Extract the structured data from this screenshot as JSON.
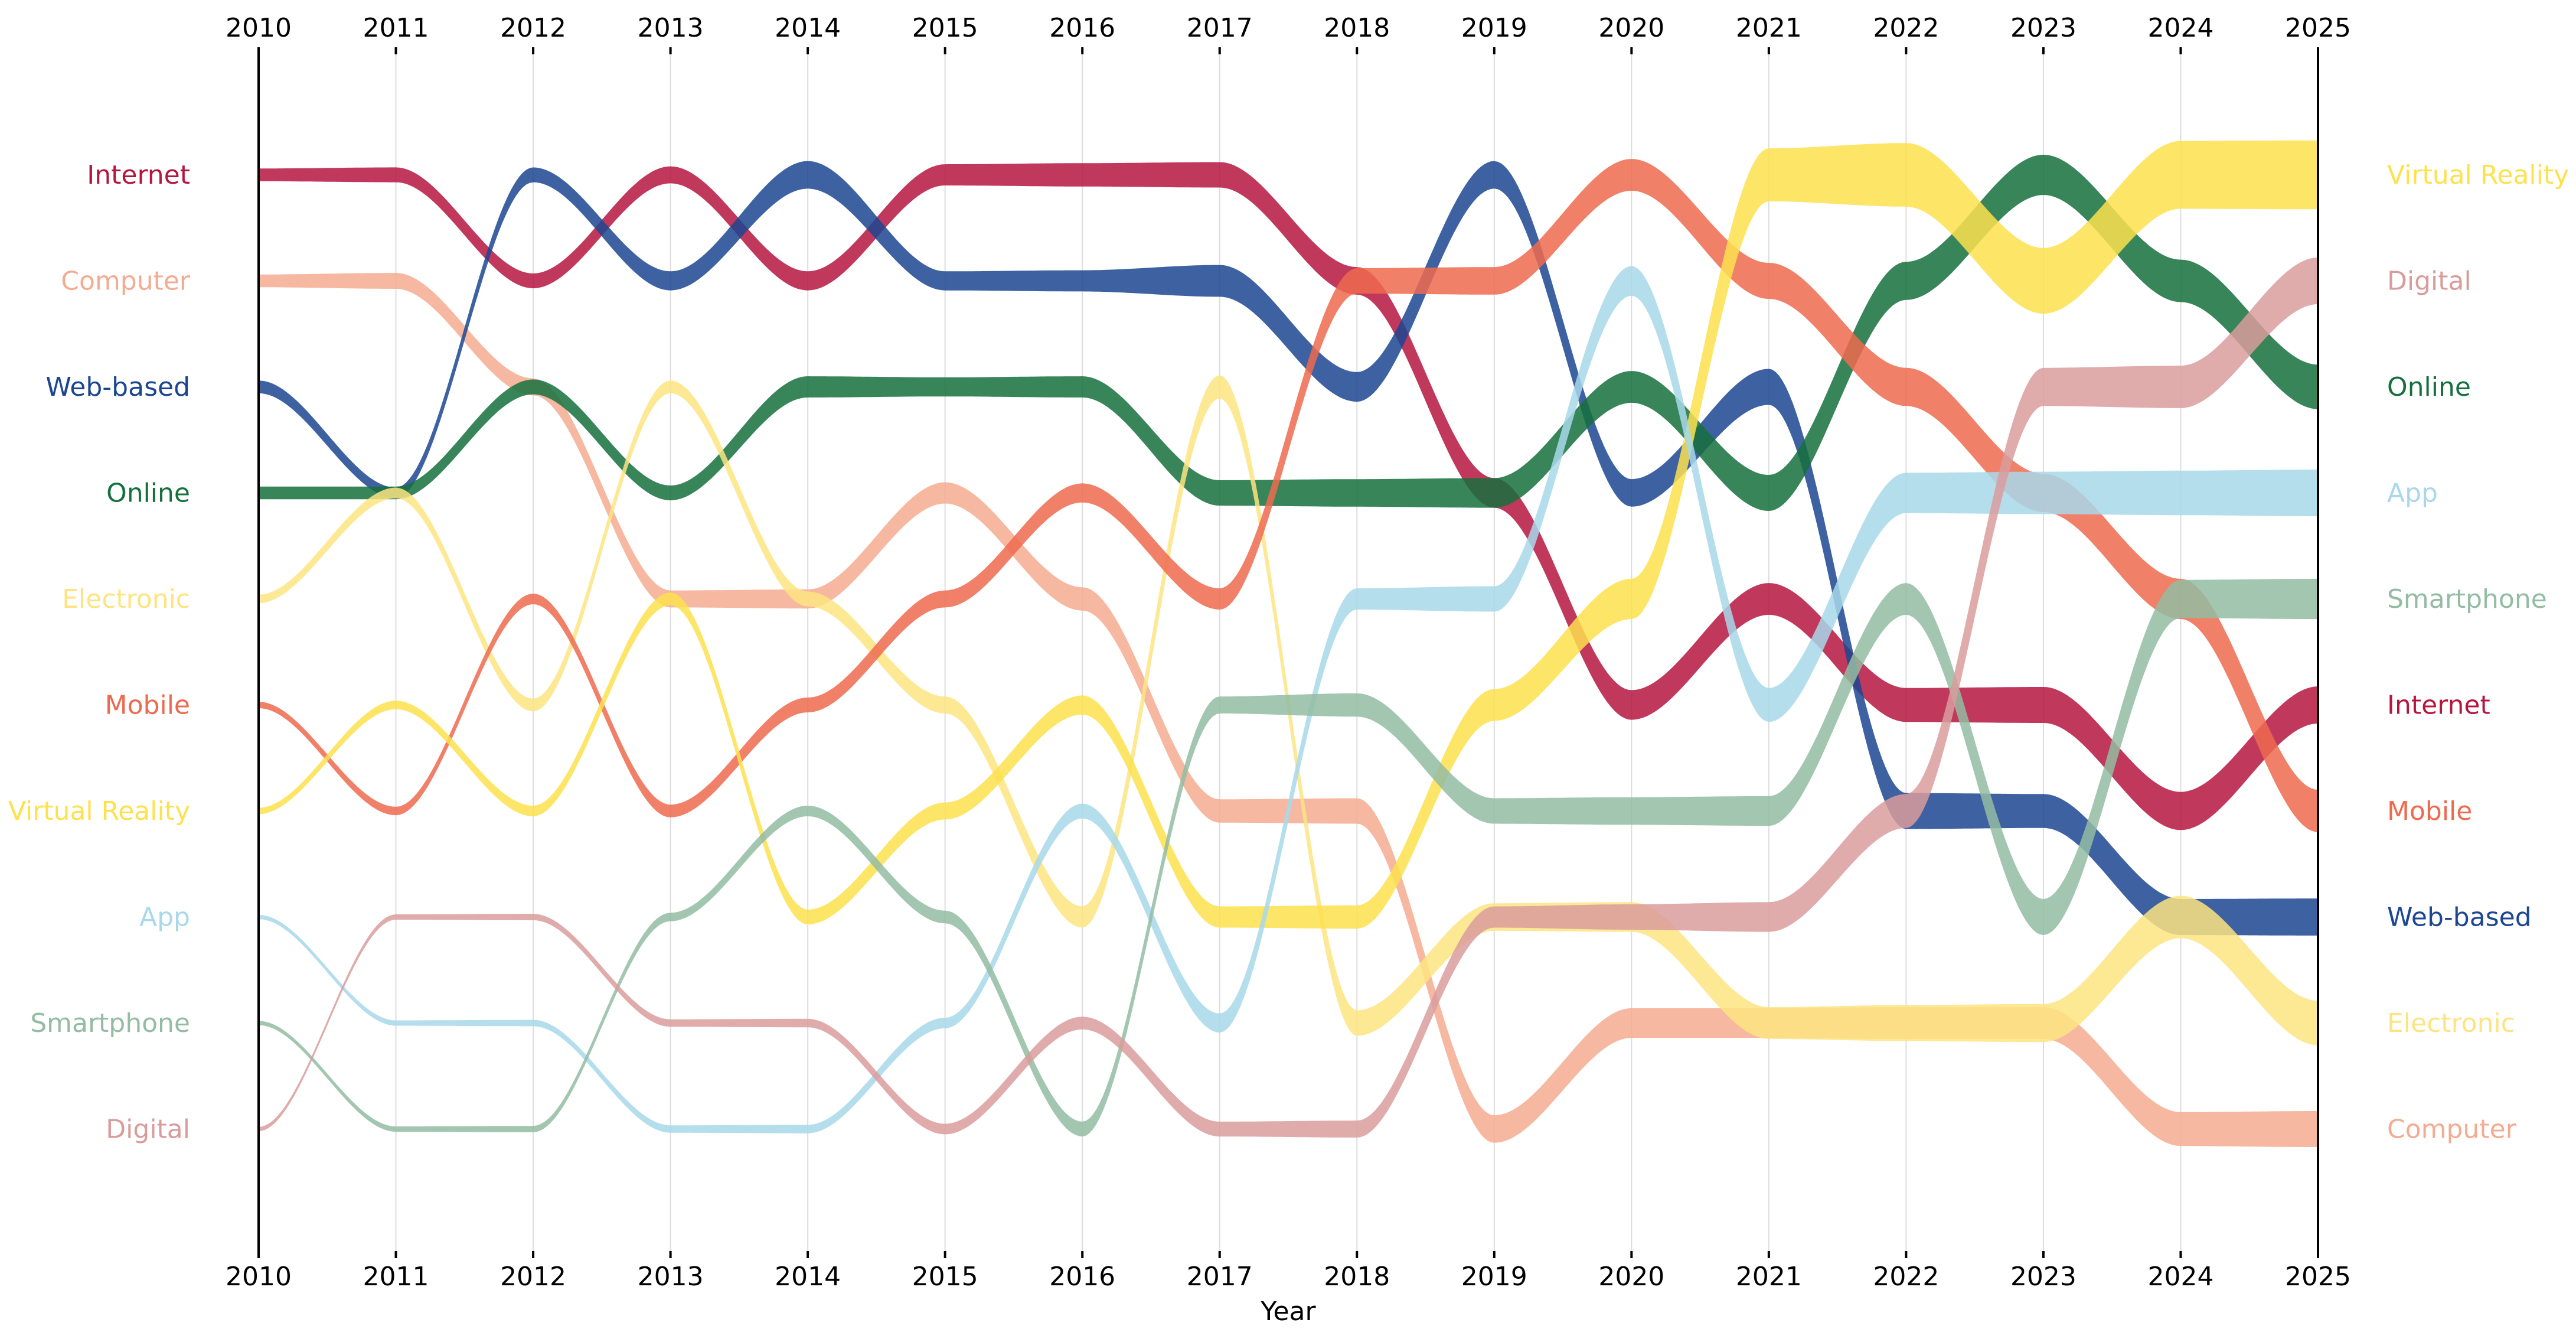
{
  "chart_data": {
    "type": "bump",
    "xlabel": "Year",
    "ylabel": "",
    "x": [
      2010,
      2011,
      2012,
      2013,
      2014,
      2015,
      2016,
      2017,
      2018,
      2019,
      2020,
      2021,
      2022,
      2023,
      2024,
      2025
    ],
    "x_tick_labels": [
      "2010",
      "2011",
      "2012",
      "2013",
      "2014",
      "2015",
      "2016",
      "2017",
      "2018",
      "2019",
      "2020",
      "2021",
      "2022",
      "2023",
      "2024",
      "2025"
    ],
    "ranks_count": 10,
    "rank_note": "rank 1 = top of chart",
    "grid": "vertical",
    "series": [
      {
        "name": "Internet",
        "color": "#b5163f",
        "ranks": [
          1,
          1,
          2,
          1,
          2,
          1,
          1,
          1,
          2,
          4,
          6,
          5,
          6,
          6,
          7,
          6
        ],
        "widths": [
          0.12,
          0.14,
          0.14,
          0.16,
          0.18,
          0.2,
          0.22,
          0.24,
          0.26,
          0.28,
          0.28,
          0.3,
          0.32,
          0.34,
          0.36,
          0.35
        ]
      },
      {
        "name": "Computer",
        "color": "#f5ab91",
        "ranks": [
          2,
          2,
          3,
          5,
          5,
          4,
          5,
          7,
          7,
          10,
          9,
          9,
          9,
          9,
          10,
          10
        ],
        "widths": [
          0.12,
          0.15,
          0.16,
          0.16,
          0.18,
          0.2,
          0.22,
          0.22,
          0.24,
          0.26,
          0.28,
          0.28,
          0.3,
          0.3,
          0.32,
          0.34
        ]
      },
      {
        "name": "Web-based",
        "color": "#1c4690",
        "ranks": [
          3,
          4,
          1,
          2,
          1,
          2,
          2,
          2,
          3,
          1,
          4,
          3,
          7,
          7,
          8,
          8
        ],
        "widths": [
          0.12,
          0.1,
          0.14,
          0.18,
          0.26,
          0.18,
          0.2,
          0.3,
          0.28,
          0.26,
          0.26,
          0.34,
          0.34,
          0.32,
          0.34,
          0.35
        ]
      },
      {
        "name": "Online",
        "color": "#16703d",
        "ranks": [
          4,
          4,
          3,
          4,
          3,
          3,
          3,
          4,
          4,
          4,
          3,
          4,
          2,
          1,
          2,
          3
        ],
        "widths": [
          0.12,
          0.12,
          0.14,
          0.14,
          0.2,
          0.18,
          0.2,
          0.24,
          0.26,
          0.28,
          0.3,
          0.34,
          0.36,
          0.38,
          0.4,
          0.42
        ]
      },
      {
        "name": "Electronic",
        "color": "#fde481",
        "ranks": [
          5,
          4,
          6,
          3,
          5,
          6,
          8,
          3,
          9,
          8,
          8,
          9,
          9,
          9,
          8,
          9
        ],
        "widths": [
          0.08,
          0.1,
          0.12,
          0.12,
          0.14,
          0.16,
          0.2,
          0.22,
          0.24,
          0.26,
          0.28,
          0.3,
          0.34,
          0.36,
          0.4,
          0.42
        ]
      },
      {
        "name": "Mobile",
        "color": "#ee6a4f",
        "ranks": [
          6,
          7,
          5,
          7,
          6,
          5,
          4,
          5,
          2,
          2,
          1,
          2,
          3,
          4,
          5,
          7
        ],
        "widths": [
          0.06,
          0.08,
          0.1,
          0.12,
          0.14,
          0.16,
          0.18,
          0.2,
          0.24,
          0.26,
          0.3,
          0.34,
          0.36,
          0.36,
          0.38,
          0.4
        ]
      },
      {
        "name": "Virtual Reality",
        "color": "#fde14d",
        "ranks": [
          7,
          6,
          7,
          5,
          8,
          7,
          6,
          8,
          8,
          6,
          5,
          1,
          1,
          2,
          1,
          1
        ],
        "widths": [
          0.06,
          0.08,
          0.1,
          0.12,
          0.14,
          0.16,
          0.18,
          0.2,
          0.22,
          0.3,
          0.38,
          0.5,
          0.6,
          0.62,
          0.64,
          0.65
        ]
      },
      {
        "name": "App",
        "color": "#a8d8ea",
        "ranks": [
          8,
          9,
          9,
          10,
          10,
          9,
          7,
          9,
          5,
          5,
          2,
          6,
          4,
          4,
          4,
          4
        ],
        "widths": [
          0.04,
          0.05,
          0.06,
          0.07,
          0.08,
          0.1,
          0.14,
          0.18,
          0.2,
          0.24,
          0.28,
          0.32,
          0.38,
          0.4,
          0.42,
          0.44
        ]
      },
      {
        "name": "Smartphone",
        "color": "#93bca2",
        "ranks": [
          9,
          10,
          10,
          8,
          7,
          8,
          10,
          6,
          6,
          7,
          7,
          7,
          5,
          8,
          5,
          5
        ],
        "widths": [
          0.04,
          0.05,
          0.06,
          0.08,
          0.1,
          0.12,
          0.14,
          0.16,
          0.22,
          0.24,
          0.26,
          0.28,
          0.3,
          0.34,
          0.36,
          0.38
        ]
      },
      {
        "name": "Digital",
        "color": "#d99c9c",
        "ranks": [
          10,
          8,
          8,
          9,
          9,
          10,
          9,
          10,
          10,
          8,
          8,
          8,
          7,
          3,
          3,
          2
        ],
        "widths": [
          0.04,
          0.05,
          0.06,
          0.07,
          0.08,
          0.1,
          0.12,
          0.14,
          0.16,
          0.2,
          0.24,
          0.28,
          0.32,
          0.36,
          0.4,
          0.44
        ]
      }
    ]
  }
}
